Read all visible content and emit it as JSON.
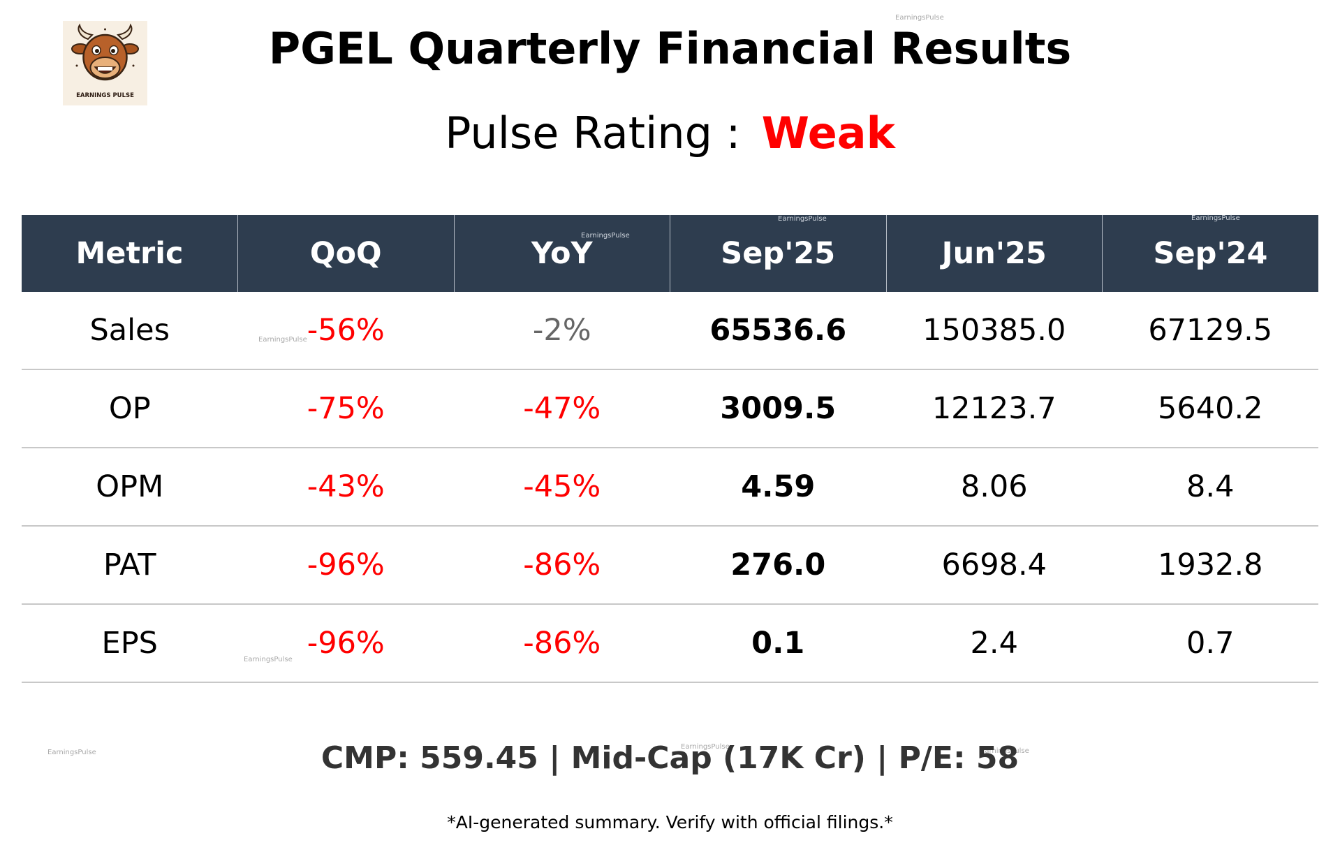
{
  "logo": {
    "icon": "bull-mascot-icon",
    "text": "EARNINGS PULSE"
  },
  "title": "PGEL Quarterly Financial Results",
  "pulse_rating": {
    "label": "Pulse Rating :",
    "value": "Weak",
    "value_color": "#ff0000"
  },
  "table": {
    "headers": [
      "Metric",
      "QoQ",
      "YoY",
      "Sep'25",
      "Jun'25",
      "Sep'24"
    ],
    "header_bg": "#2e3d4f",
    "rows": [
      {
        "metric": "Sales",
        "qoq": "-56%",
        "yoy": "-2%",
        "sep25": "65536.6",
        "jun25": "150385.0",
        "sep24": "67129.5"
      },
      {
        "metric": "OP",
        "qoq": "-75%",
        "yoy": "-47%",
        "sep25": "3009.5",
        "jun25": "12123.7",
        "sep24": "5640.2"
      },
      {
        "metric": "OPM",
        "qoq": "-43%",
        "yoy": "-45%",
        "sep25": "4.59",
        "jun25": "8.06",
        "sep24": "8.4"
      },
      {
        "metric": "PAT",
        "qoq": "-96%",
        "yoy": "-86%",
        "sep25": "276.0",
        "jun25": "6698.4",
        "sep24": "1932.8"
      },
      {
        "metric": "EPS",
        "qoq": "-96%",
        "yoy": "-86%",
        "sep25": "0.1",
        "jun25": "2.4",
        "sep24": "0.7"
      }
    ],
    "negative_color": "#ff0000",
    "neutral_color": "#666666"
  },
  "watermark": "EarningsPulse",
  "footer": "CMP: 559.45 | Mid-Cap (17K Cr) | P/E: 58",
  "disclaimer": "*AI-generated summary. Verify with official filings.*"
}
